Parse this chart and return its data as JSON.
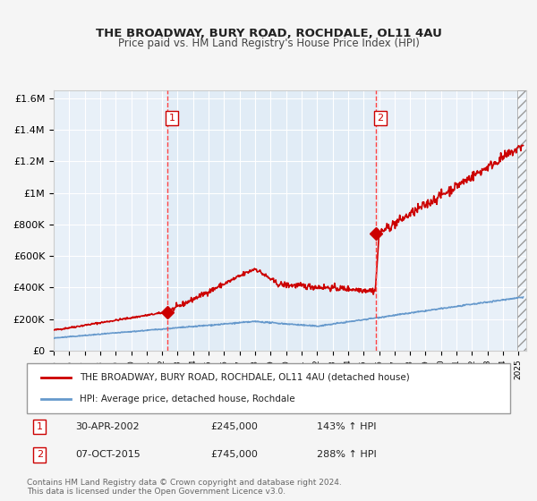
{
  "title": "THE BROADWAY, BURY ROAD, ROCHDALE, OL11 4AU",
  "subtitle": "Price paid vs. HM Land Registry's House Price Index (HPI)",
  "xlabel": "",
  "ylabel": "",
  "ylim": [
    0,
    1650000
  ],
  "xlim_start": 1995.0,
  "xlim_end": 2025.5,
  "yticks": [
    0,
    200000,
    400000,
    600000,
    800000,
    1000000,
    1200000,
    1400000,
    1600000
  ],
  "ytick_labels": [
    "£0",
    "£200K",
    "£400K",
    "£600K",
    "£800K",
    "£1M",
    "£1.2M",
    "£1.4M",
    "£1.6M"
  ],
  "bg_color": "#dce9f5",
  "plot_bg": "#e8f0f8",
  "grid_color": "#ffffff",
  "red_line_color": "#cc0000",
  "blue_line_color": "#6699cc",
  "marker1_date": 2002.33,
  "marker1_price": 245000,
  "marker1_label": "1",
  "marker2_date": 2015.77,
  "marker2_price": 745000,
  "marker2_label": "2",
  "vline_color": "#ff4444",
  "annotation1_date": "30-APR-2002",
  "annotation1_price": "£245,000",
  "annotation1_hpi": "143% ↑ HPI",
  "annotation2_date": "07-OCT-2015",
  "annotation2_price": "£745,000",
  "annotation2_hpi": "288% ↑ HPI",
  "legend_line1": "THE BROADWAY, BURY ROAD, ROCHDALE, OL11 4AU (detached house)",
  "legend_line2": "HPI: Average price, detached house, Rochdale",
  "footer": "Contains HM Land Registry data © Crown copyright and database right 2024.\nThis data is licensed under the Open Government Licence v3.0.",
  "hatch_end_x": 2025.5,
  "hatch_start_x": 2024.9
}
